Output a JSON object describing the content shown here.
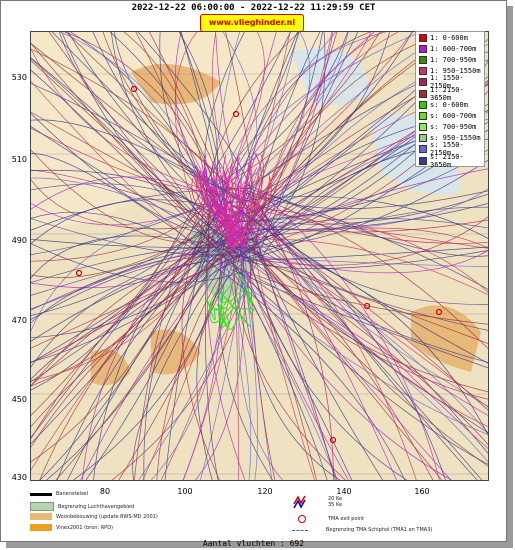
{
  "header": {
    "title": "2022-12-22 06:00:00 - 2022-12-22 11:29:59 CET",
    "site": "www.vlieghinder.nl"
  },
  "axes": {
    "y_ticks": [
      "530",
      "510",
      "490",
      "470",
      "450",
      "430"
    ],
    "x_ticks": [
      "80",
      "100",
      "120",
      "140",
      "160"
    ]
  },
  "legend": {
    "items": [
      {
        "label": "1: 0-600m",
        "color": "#dd0000"
      },
      {
        "label": "1: 600-700m",
        "color": "#aa22cc"
      },
      {
        "label": "1: 700-950m",
        "color": "#448800"
      },
      {
        "label": "1: 950-1550m",
        "color": "#cc3366"
      },
      {
        "label": "1: 1550-2150m",
        "color": "#aa2255"
      },
      {
        "label": "1: 2150-3650m",
        "color": "#993333"
      },
      {
        "label": "s: 0-600m",
        "color": "#33cc00"
      },
      {
        "label": "s: 600-700m",
        "color": "#66dd22"
      },
      {
        "label": "s: 700-950m",
        "color": "#88ee55"
      },
      {
        "label": "s: 950-1550m",
        "color": "#99cc88"
      },
      {
        "label": "s: 1550-2150m",
        "color": "#6666cc"
      },
      {
        "label": "s: 2150-3650m",
        "color": "#3a3a8a"
      }
    ]
  },
  "bottom_legend": {
    "runway": "Banenstelsel",
    "airport_boundary": "Begrenzing Luchthavengebied",
    "housing": "Woonbebouwing (update RWS-MD 2001)",
    "vinex": "Vinex2001 (bron: RPD)",
    "ke20": "20 Ke",
    "ke35": "35 Ke",
    "tma_exit": "TMA exit point",
    "tma_boundary": "Begrenzing TMA Schiphol  (TMA1 en TMA3)"
  },
  "footer": {
    "count": "Aantal vluchten : 692"
  },
  "colors": {
    "water": "#d8e6ea",
    "land": "#f4e8c8",
    "housing": "#e8b878",
    "airport": "#b8d4b0",
    "vinex": "#e8a020"
  }
}
